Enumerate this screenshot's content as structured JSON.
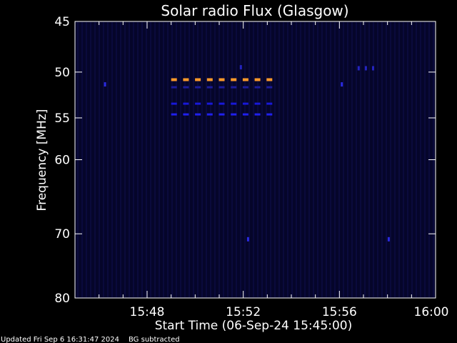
{
  "chart_data": {
    "type": "heatmap",
    "title": "Solar radio Flux (Glasgow)",
    "xlabel": "Start Time (06-Sep-24 15:45:00)",
    "ylabel": "Frequency [MHz]",
    "x_range_min": [
      0,
      15
    ],
    "x_ticks": [
      {
        "value": 3,
        "label": "15:48"
      },
      {
        "value": 7,
        "label": "15:52"
      },
      {
        "value": 11,
        "label": "15:56"
      },
      {
        "value": 15,
        "label": "16:00"
      }
    ],
    "y_scale": "log",
    "y_range": [
      45,
      80
    ],
    "y_ticks": [
      {
        "value": 45,
        "label": "45"
      },
      {
        "value": 50,
        "label": "50"
      },
      {
        "value": 55,
        "label": "55"
      },
      {
        "value": 60,
        "label": "60"
      },
      {
        "value": 70,
        "label": "70"
      },
      {
        "value": 80,
        "label": "80"
      }
    ],
    "background_color": "#05052a",
    "events": [
      {
        "freq_mhz": 50.8,
        "start_min": 4.0,
        "end_min": 8.2,
        "level": "high",
        "color": "#ff9a2a"
      },
      {
        "freq_mhz": 51.6,
        "start_min": 4.0,
        "end_min": 8.2,
        "level": "low",
        "color": "#1c1c9a"
      },
      {
        "freq_mhz": 53.4,
        "start_min": 4.0,
        "end_min": 8.2,
        "level": "medium",
        "color": "#1818d8"
      },
      {
        "freq_mhz": 54.6,
        "start_min": 4.0,
        "end_min": 8.2,
        "level": "medium",
        "color": "#2020ee"
      }
    ],
    "spots": [
      {
        "freq_mhz": 51.3,
        "min": 1.25,
        "color": "#2a2ae0"
      },
      {
        "freq_mhz": 49.5,
        "min": 6.9,
        "color": "#2424c0"
      },
      {
        "freq_mhz": 51.3,
        "min": 11.1,
        "color": "#2a2ae0"
      },
      {
        "freq_mhz": 49.6,
        "min": 11.8,
        "color": "#2424c0"
      },
      {
        "freq_mhz": 49.6,
        "min": 12.1,
        "color": "#2424c0"
      },
      {
        "freq_mhz": 49.6,
        "min": 12.4,
        "color": "#2424c0"
      },
      {
        "freq_mhz": 70.8,
        "min": 7.2,
        "color": "#2a2ae0"
      },
      {
        "freq_mhz": 70.8,
        "min": 13.05,
        "color": "#2a2ae0"
      }
    ]
  },
  "footer": {
    "updated": "Updated Fri Sep  6 16:31:47 2024",
    "bg_note": "BG subtracted"
  },
  "colors": {
    "axis": "#ffffff",
    "background": "#000000"
  }
}
